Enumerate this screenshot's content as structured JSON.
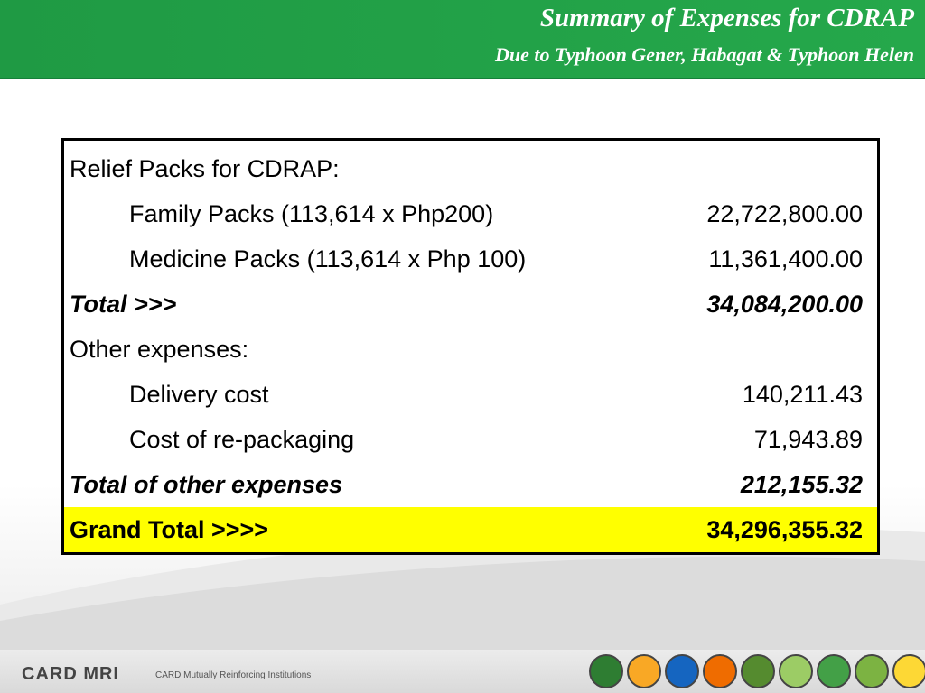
{
  "header": {
    "title": "Summary of Expenses for CDRAP",
    "subtitle": "Due to Typhoon Gener, Habagat & Typhoon Helen"
  },
  "table": {
    "rows": [
      {
        "label": "Relief Packs for CDRAP:",
        "value": ""
      },
      {
        "label": "Family Packs (113,614 x Php200)",
        "value": "22,722,800.00"
      },
      {
        "label": "Medicine Packs (113,614 x Php 100)",
        "value": "11,361,400.00"
      },
      {
        "label": "Total >>>",
        "value": "34,084,200.00"
      },
      {
        "label": "Other expenses:",
        "value": ""
      },
      {
        "label": "Delivery cost",
        "value": "140,211.43"
      },
      {
        "label": "Cost of re-packaging",
        "value": "71,943.89"
      },
      {
        "label": "Total of other expenses",
        "value": "212,155.32"
      },
      {
        "label": "Grand Total >>>>",
        "value": "34,296,355.32"
      }
    ]
  },
  "footer": {
    "brand": "CARD MRI",
    "brand_sub": "CARD Mutually Reinforcing Institutions",
    "colors": {
      "green": "#25a84b",
      "grand_total_highlight": "#ffff00"
    }
  }
}
